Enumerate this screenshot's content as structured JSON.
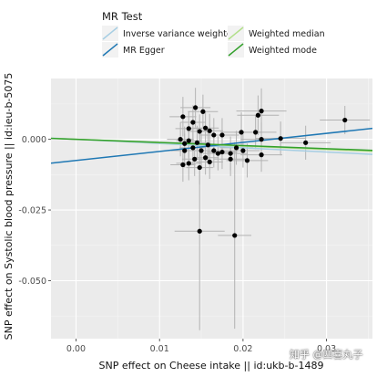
{
  "chart_data": {
    "type": "scatter",
    "xlabel": "SNP effect on Cheese intake || id:ukb-b-1489",
    "ylabel": "SNP effect on Systolic blood pressure || id:ieu-b-5075",
    "xlim": [
      -0.003,
      0.0355
    ],
    "ylim": [
      -0.0705,
      0.0215
    ],
    "x_ticks": [
      0.0,
      0.01,
      0.02,
      0.03
    ],
    "x_tick_labels": [
      "0.00",
      "0.01",
      "0.02",
      "0.03"
    ],
    "y_ticks": [
      0.0,
      -0.025,
      -0.05
    ],
    "y_tick_labels": [
      "0.000",
      "-0.025",
      "-0.050"
    ],
    "grid": true,
    "legend": {
      "title": "MR Test",
      "placement": "top",
      "entries": [
        {
          "label": "Inverse variance weighted",
          "color": "#a6cee3"
        },
        {
          "label": "Weighted median",
          "color": "#b2df8a"
        },
        {
          "label": "MR Egger",
          "color": "#1f78b4"
        },
        {
          "label": "Weighted mode",
          "color": "#33a02c"
        }
      ]
    },
    "lines": [
      {
        "name": "Inverse variance weighted",
        "color": "#a6cee3",
        "slope": -0.15,
        "intercept": 0.0
      },
      {
        "name": "Weighted median",
        "color": "#b2df8a",
        "slope": -0.12,
        "intercept": 0.0
      },
      {
        "name": "MR Egger",
        "color": "#1f78b4",
        "slope": 0.32,
        "intercept": -0.0075
      },
      {
        "name": "Weighted mode",
        "color": "#33a02c",
        "slope": -0.11,
        "intercept": 0.0
      }
    ],
    "points": [
      {
        "x": 0.0128,
        "y": 0.008,
        "xse": 0.0016,
        "yse": 0.007
      },
      {
        "x": 0.0135,
        "y": 0.0038,
        "xse": 0.0016,
        "yse": 0.006
      },
      {
        "x": 0.0143,
        "y": 0.0112,
        "xse": 0.0018,
        "yse": 0.007
      },
      {
        "x": 0.0152,
        "y": 0.0098,
        "xse": 0.0018,
        "yse": 0.006
      },
      {
        "x": 0.014,
        "y": 0.006,
        "xse": 0.0015,
        "yse": 0.006
      },
      {
        "x": 0.0148,
        "y": 0.0028,
        "xse": 0.0015,
        "yse": 0.006
      },
      {
        "x": 0.0155,
        "y": 0.004,
        "xse": 0.0016,
        "yse": 0.006
      },
      {
        "x": 0.016,
        "y": 0.003,
        "xse": 0.0016,
        "yse": 0.006
      },
      {
        "x": 0.0165,
        "y": 0.0015,
        "xse": 0.0016,
        "yse": 0.006
      },
      {
        "x": 0.0175,
        "y": 0.0015,
        "xse": 0.002,
        "yse": 0.006
      },
      {
        "x": 0.0198,
        "y": 0.0025,
        "xse": 0.0025,
        "yse": 0.007
      },
      {
        "x": 0.0218,
        "y": 0.0085,
        "xse": 0.0025,
        "yse": 0.007
      },
      {
        "x": 0.0222,
        "y": 0.01,
        "xse": 0.003,
        "yse": 0.008
      },
      {
        "x": 0.0215,
        "y": 0.0025,
        "xse": 0.0025,
        "yse": 0.006
      },
      {
        "x": 0.0222,
        "y": 0.0,
        "xse": 0.0025,
        "yse": 0.006
      },
      {
        "x": 0.0245,
        "y": 0.0003,
        "xse": 0.003,
        "yse": 0.006
      },
      {
        "x": 0.0275,
        "y": -0.0012,
        "xse": 0.003,
        "yse": 0.006
      },
      {
        "x": 0.0322,
        "y": 0.0068,
        "xse": 0.003,
        "yse": 0.005
      },
      {
        "x": 0.0125,
        "y": 0.0,
        "xse": 0.0016,
        "yse": 0.006
      },
      {
        "x": 0.013,
        "y": -0.0015,
        "xse": 0.0016,
        "yse": 0.006
      },
      {
        "x": 0.0135,
        "y": -0.0005,
        "xse": 0.0015,
        "yse": 0.006
      },
      {
        "x": 0.013,
        "y": -0.004,
        "xse": 0.0016,
        "yse": 0.006
      },
      {
        "x": 0.014,
        "y": -0.003,
        "xse": 0.0016,
        "yse": 0.006
      },
      {
        "x": 0.0145,
        "y": -0.0012,
        "xse": 0.0016,
        "yse": 0.006
      },
      {
        "x": 0.015,
        "y": -0.004,
        "xse": 0.0016,
        "yse": 0.006
      },
      {
        "x": 0.0155,
        "y": -0.0065,
        "xse": 0.0016,
        "yse": 0.006
      },
      {
        "x": 0.0158,
        "y": -0.002,
        "xse": 0.0015,
        "yse": 0.006
      },
      {
        "x": 0.0165,
        "y": -0.004,
        "xse": 0.0016,
        "yse": 0.006
      },
      {
        "x": 0.017,
        "y": -0.005,
        "xse": 0.0018,
        "yse": 0.006
      },
      {
        "x": 0.0175,
        "y": -0.0045,
        "xse": 0.0018,
        "yse": 0.006
      },
      {
        "x": 0.0185,
        "y": -0.007,
        "xse": 0.002,
        "yse": 0.006
      },
      {
        "x": 0.0192,
        "y": -0.003,
        "xse": 0.002,
        "yse": 0.006
      },
      {
        "x": 0.02,
        "y": -0.004,
        "xse": 0.002,
        "yse": 0.006
      },
      {
        "x": 0.0205,
        "y": -0.0075,
        "xse": 0.0025,
        "yse": 0.006
      },
      {
        "x": 0.0222,
        "y": -0.0055,
        "xse": 0.0025,
        "yse": 0.006
      },
      {
        "x": 0.0135,
        "y": -0.0085,
        "xse": 0.0015,
        "yse": 0.006
      },
      {
        "x": 0.0128,
        "y": -0.009,
        "xse": 0.0015,
        "yse": 0.006
      },
      {
        "x": 0.0148,
        "y": -0.01,
        "xse": 0.0016,
        "yse": 0.006
      },
      {
        "x": 0.0142,
        "y": -0.007,
        "xse": 0.0015,
        "yse": 0.006
      },
      {
        "x": 0.016,
        "y": -0.008,
        "xse": 0.0016,
        "yse": 0.006
      },
      {
        "x": 0.0185,
        "y": -0.005,
        "xse": 0.002,
        "yse": 0.006
      },
      {
        "x": 0.0148,
        "y": -0.0325,
        "xse": 0.003,
        "yse": 0.035
      },
      {
        "x": 0.019,
        "y": -0.034,
        "xse": 0.002,
        "yse": 0.033
      }
    ]
  },
  "watermark": "知乎 @四喜丸子"
}
